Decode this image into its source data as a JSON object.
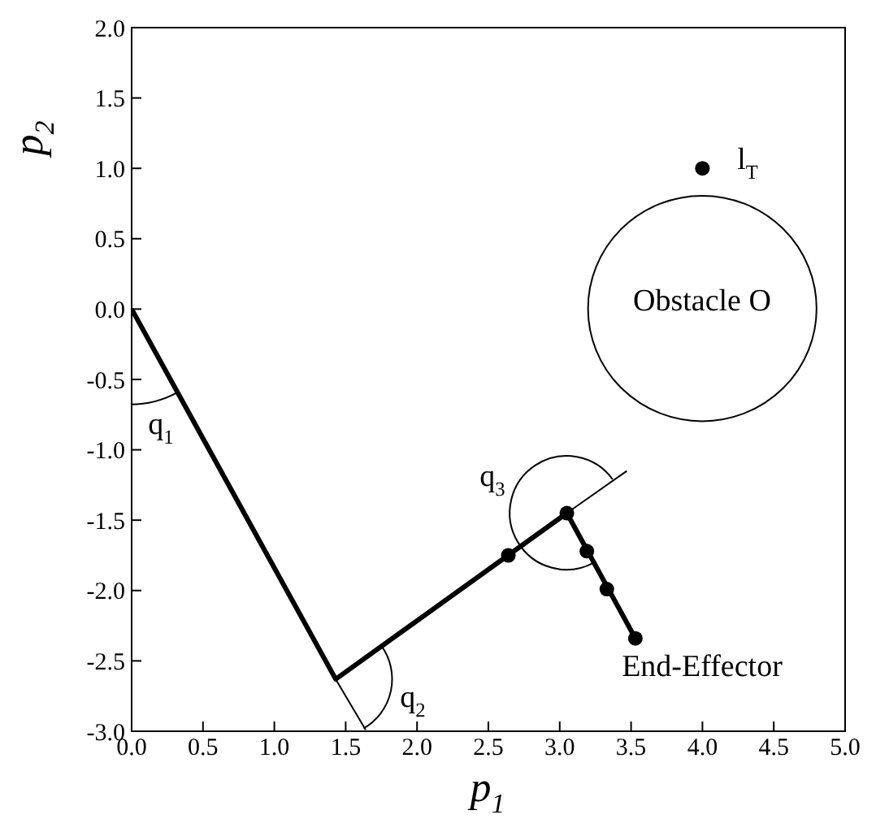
{
  "chart_data": {
    "type": "line",
    "xlabel": "p$_{1}$",
    "ylabel": "p$_{2}$",
    "xlim": [
      0,
      5
    ],
    "ylim": [
      -3,
      2
    ],
    "xticks": [
      {
        "value": 0,
        "label": "0.0"
      },
      {
        "value": 0.5,
        "label": "0.5"
      },
      {
        "value": 1,
        "label": "1.0"
      },
      {
        "value": 1.5,
        "label": "1.5"
      },
      {
        "value": 2,
        "label": "2.0"
      },
      {
        "value": 2.5,
        "label": "2.5"
      },
      {
        "value": 3,
        "label": "3.0"
      },
      {
        "value": 3.5,
        "label": "3.5"
      },
      {
        "value": 4,
        "label": "4.0"
      },
      {
        "value": 4.5,
        "label": "4.5"
      },
      {
        "value": 5,
        "label": "5.0"
      }
    ],
    "yticks": [
      {
        "value": -3,
        "label": "-3.0"
      },
      {
        "value": -2.5,
        "label": "-2.5"
      },
      {
        "value": -2,
        "label": "-2.0"
      },
      {
        "value": -1.5,
        "label": "-1.5"
      },
      {
        "value": -1,
        "label": "-1.0"
      },
      {
        "value": -0.5,
        "label": "-0.5"
      },
      {
        "value": 0,
        "label": "0.0"
      },
      {
        "value": 0.5,
        "label": "0.5"
      },
      {
        "value": 1,
        "label": "1.0"
      },
      {
        "value": 1.5,
        "label": "1.5"
      },
      {
        "value": 2,
        "label": "2.0"
      }
    ],
    "grid": false,
    "line_style": "solid",
    "series": [
      {
        "color": "#000000",
        "marker": "none",
        "x": [
          0,
          1.43,
          3.05,
          3.53
        ],
        "values": [
          0,
          -2.63,
          -1.45,
          -2.34
        ]
      },
      {
        "type": "scatter",
        "color": "#000000",
        "marker": "circle",
        "x": [
          2.64,
          3.05,
          3.19,
          3.33,
          3.53
        ],
        "values": [
          -1.75,
          -1.45,
          -1.72,
          -1.99,
          -2.34
        ]
      },
      {
        "type": "scatter",
        "color": "#000000",
        "marker": "circle",
        "x": [
          4
        ],
        "values": [
          1
        ]
      },
      {
        "color": "#000000",
        "marker": "none",
        "x": [
          1.43,
          1.64
        ],
        "values": [
          -2.63,
          -2.99
        ]
      },
      {
        "color": "#000000",
        "marker": "none",
        "x": [
          3.05,
          3.47
        ],
        "values": [
          -1.45,
          -1.15
        ]
      }
    ],
    "annotations": [
      "q$_{1}$",
      "q$_{2}$",
      "q$_{3}$",
      "l$_{T}$",
      "Obstacle O",
      "End-Effector"
    ]
  }
}
